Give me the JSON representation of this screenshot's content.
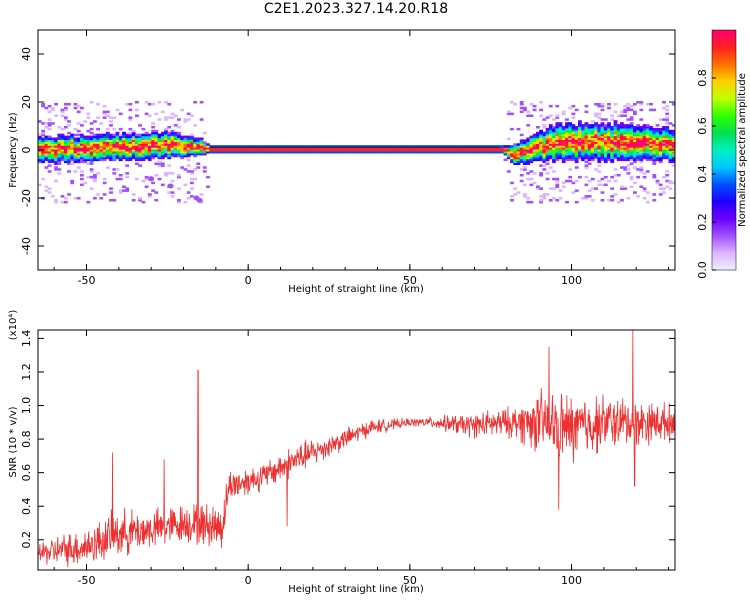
{
  "title": "C2E1.2023.327.14.20.R18",
  "chart_data": [
    {
      "type": "heatmap",
      "xlabel": "Height of straight line (km)",
      "ylabel": "Frequency (Hz)",
      "xlim": [
        -65,
        132
      ],
      "ylim": [
        -50,
        50
      ],
      "x_ticks": [
        "-50",
        "0",
        "50",
        "100"
      ],
      "y_ticks": [
        "40",
        "20",
        "0",
        "-20",
        "-40"
      ],
      "colorbar": {
        "label": "Normalized spectral amplitude",
        "range": [
          0.0,
          1.0
        ],
        "ticks": [
          "0.0",
          "0.2",
          "0.4",
          "0.6",
          "0.8"
        ],
        "colors": [
          "#f0f0ff",
          "#dcb4ff",
          "#a050ff",
          "#6a00ff",
          "#1e00ff",
          "#0050ff",
          "#00c8ff",
          "#00f0c0",
          "#00e050",
          "#30ff00",
          "#c0ff00",
          "#ffd000",
          "#ff7000",
          "#ff2020",
          "#ff0070"
        ]
      },
      "band": [
        {
          "x": -65,
          "center": 0,
          "halfwidth": 5,
          "noise": 0.55
        },
        {
          "x": -40,
          "center": 1,
          "halfwidth": 5,
          "noise": 0.55
        },
        {
          "x": -25,
          "center": 2,
          "halfwidth": 5,
          "noise": 0.5
        },
        {
          "x": -15,
          "center": 1,
          "halfwidth": 3,
          "noise": 0.35
        },
        {
          "x": -12,
          "center": 0,
          "halfwidth": 1,
          "noise": 0.0
        },
        {
          "x": 78,
          "center": 0,
          "halfwidth": 1,
          "noise": 0.0
        },
        {
          "x": 82,
          "center": -2,
          "halfwidth": 4,
          "noise": 0.4
        },
        {
          "x": 95,
          "center": 3,
          "halfwidth": 7,
          "noise": 0.65
        },
        {
          "x": 115,
          "center": 3,
          "halfwidth": 7,
          "noise": 0.65
        },
        {
          "x": 132,
          "center": 2,
          "halfwidth": 6,
          "noise": 0.6
        }
      ],
      "outliers": [
        {
          "x": -30,
          "y": -12
        },
        {
          "x": -24,
          "y": -15
        },
        {
          "x": -16,
          "y": -20
        },
        {
          "x": -15,
          "y": -21
        }
      ]
    },
    {
      "type": "line",
      "xlabel": "Height of straight line (km)",
      "ylabel": "SNR (10 * v/v)",
      "y_scale_label": "(x10⁴)",
      "xlim": [
        -65,
        132
      ],
      "ylim": [
        0.02,
        1.45
      ],
      "x_ticks": [
        "-50",
        "0",
        "50",
        "100"
      ],
      "y_ticks": [
        "0.2",
        "0.4",
        "0.6",
        "0.8",
        "1.0",
        "1.2",
        "1.4"
      ],
      "color": "#ee3030",
      "envelope": [
        {
          "x": -65,
          "mean": 0.12,
          "amp": 0.06
        },
        {
          "x": -50,
          "mean": 0.16,
          "amp": 0.1
        },
        {
          "x": -40,
          "mean": 0.24,
          "amp": 0.12
        },
        {
          "x": -30,
          "mean": 0.26,
          "amp": 0.1
        },
        {
          "x": -20,
          "mean": 0.3,
          "amp": 0.1
        },
        {
          "x": -8,
          "mean": 0.28,
          "amp": 0.12
        },
        {
          "x": -6,
          "mean": 0.52,
          "amp": 0.08
        },
        {
          "x": 5,
          "mean": 0.58,
          "amp": 0.07
        },
        {
          "x": 15,
          "mean": 0.68,
          "amp": 0.08
        },
        {
          "x": 25,
          "mean": 0.76,
          "amp": 0.06
        },
        {
          "x": 38,
          "mean": 0.87,
          "amp": 0.04
        },
        {
          "x": 50,
          "mean": 0.9,
          "amp": 0.02
        },
        {
          "x": 57,
          "mean": 0.9,
          "amp": 0.03
        },
        {
          "x": 68,
          "mean": 0.88,
          "amp": 0.06
        },
        {
          "x": 82,
          "mean": 0.9,
          "amp": 0.08
        },
        {
          "x": 90,
          "mean": 0.9,
          "amp": 0.16
        },
        {
          "x": 100,
          "mean": 0.86,
          "amp": 0.18
        },
        {
          "x": 110,
          "mean": 0.9,
          "amp": 0.14
        },
        {
          "x": 132,
          "mean": 0.9,
          "amp": 0.09
        }
      ],
      "spikes": [
        {
          "x": -42,
          "y": 0.72
        },
        {
          "x": -26,
          "y": 0.68
        },
        {
          "x": -15.5,
          "y": 1.21
        },
        {
          "x": -14.7,
          "y": 0.25
        },
        {
          "x": 12,
          "y": 0.28
        },
        {
          "x": 93,
          "y": 1.35
        },
        {
          "x": 96,
          "y": 0.38
        },
        {
          "x": 119,
          "y": 1.45
        },
        {
          "x": 119.5,
          "y": 0.52
        }
      ]
    }
  ]
}
